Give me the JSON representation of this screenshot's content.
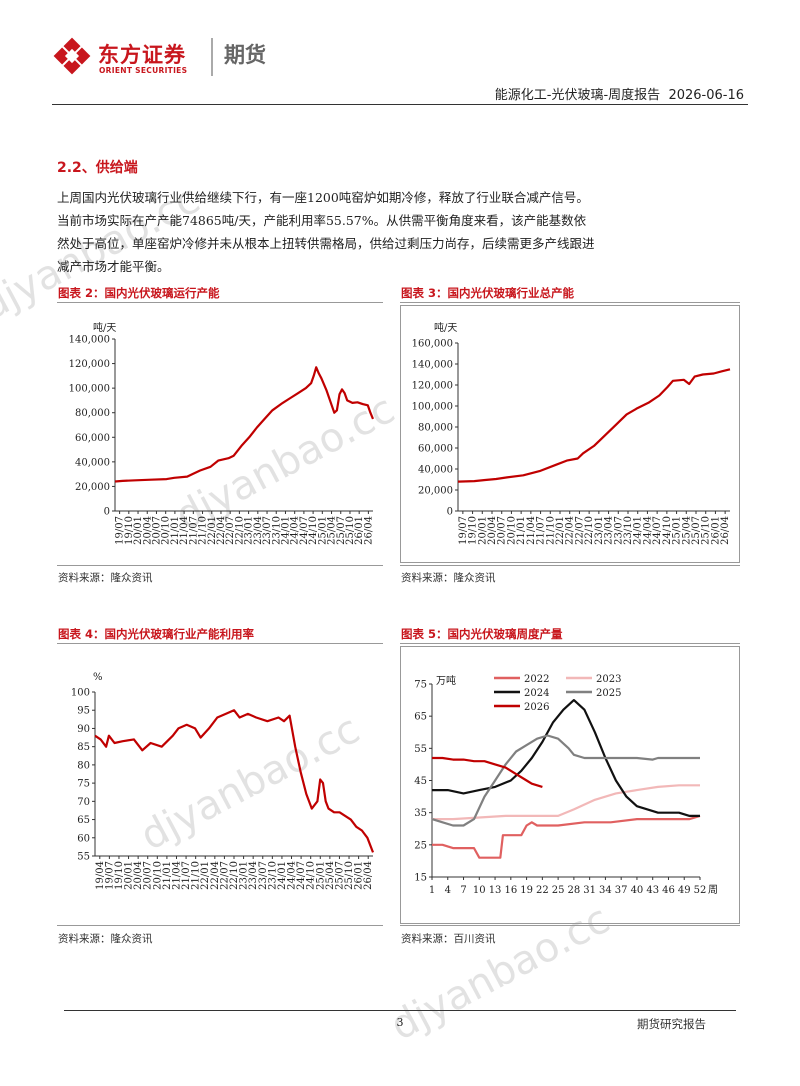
{
  "header": {
    "logo_cn": "东方证券",
    "logo_en": "ORIENT SECURITIES",
    "logo_futures": "期货",
    "title": "能源化工-光伏玻璃-周度报告",
    "date": "2026-06-16"
  },
  "section": {
    "title": "2.2、供给端",
    "paragraph": "上周国内光伏玻璃行业供给继续下行，有一座1200吨窑炉如期冷修，释放了行业联合减产信号。当前市场实际在产产能74865吨/天，产能利用率55.57%。从供需平衡角度来看，该产能基数依然处于高位，单座窑炉冷修并未从根本上扭转供需格局，供给过剩压力尚存，后续需更多产线跟进减产市场才能平衡。"
  },
  "watermark": "djyanbao.cc",
  "figures": [
    {
      "title": "图表 2：国内光伏玻璃运行产能",
      "source": "资料来源：隆众资讯"
    },
    {
      "title": "图表 3：国内光伏玻璃行业总产能",
      "source": "资料来源：隆众资讯"
    },
    {
      "title": "图表 4：国内光伏玻璃行业产能利用率",
      "source": "资料来源：隆众资讯"
    },
    {
      "title": "图表 5：国内光伏玻璃周度产量",
      "source": "资料来源：百川资讯"
    }
  ],
  "footer": {
    "page": "3",
    "label": "期货研究报告"
  },
  "chart_data": [
    {
      "type": "line",
      "unit": "吨/天",
      "ylim": [
        0,
        140000
      ],
      "yticks": [
        0,
        20000,
        40000,
        60000,
        80000,
        100000,
        120000,
        140000
      ],
      "ytick_labels": [
        "0",
        "20,000",
        "40,000",
        "60,000",
        "80,000",
        "100,000",
        "120,000",
        "140,000"
      ],
      "xticks": [
        "19/07",
        "19/10",
        "20/01",
        "20/04",
        "20/07",
        "20/10",
        "21/01",
        "21/04",
        "21/07",
        "21/10",
        "22/01",
        "22/04",
        "22/07",
        "22/10",
        "23/01",
        "23/04",
        "23/07",
        "23/10",
        "24/01",
        "24/04",
        "24/07",
        "24/10",
        "25/01",
        "25/04",
        "25/07",
        "25/10",
        "26/01",
        "26/04"
      ],
      "color": "#c00000",
      "series": [
        {
          "values": [
            [
              0,
              24000
            ],
            [
              0.03,
              24500
            ],
            [
              0.08,
              25000
            ],
            [
              0.14,
              25500
            ],
            [
              0.2,
              26000
            ],
            [
              0.23,
              27000
            ],
            [
              0.28,
              28000
            ],
            [
              0.3,
              30000
            ],
            [
              0.33,
              33000
            ],
            [
              0.37,
              36000
            ],
            [
              0.4,
              41000
            ],
            [
              0.44,
              43000
            ],
            [
              0.46,
              45000
            ],
            [
              0.49,
              53000
            ],
            [
              0.52,
              60000
            ],
            [
              0.55,
              68000
            ],
            [
              0.58,
              75000
            ],
            [
              0.61,
              82000
            ],
            [
              0.65,
              88000
            ],
            [
              0.68,
              92000
            ],
            [
              0.71,
              96000
            ],
            [
              0.74,
              100000
            ],
            [
              0.76,
              104000
            ],
            [
              0.77,
              110000
            ],
            [
              0.78,
              117000
            ],
            [
              0.79,
              112000
            ],
            [
              0.8,
              108000
            ],
            [
              0.82,
              98000
            ],
            [
              0.84,
              86000
            ],
            [
              0.85,
              80000
            ],
            [
              0.86,
              82000
            ],
            [
              0.87,
              95000
            ],
            [
              0.88,
              99000
            ],
            [
              0.89,
              96000
            ],
            [
              0.9,
              90000
            ],
            [
              0.92,
              88000
            ],
            [
              0.94,
              88500
            ],
            [
              0.96,
              87000
            ],
            [
              0.98,
              86000
            ],
            [
              0.99,
              80000
            ],
            [
              1.0,
              75000
            ]
          ]
        }
      ]
    },
    {
      "type": "line",
      "unit": "吨/天",
      "ylim": [
        0,
        160000
      ],
      "yticks": [
        0,
        20000,
        40000,
        60000,
        80000,
        100000,
        120000,
        140000,
        160000
      ],
      "ytick_labels": [
        "0",
        "20,000",
        "40,000",
        "60,000",
        "80,000",
        "100,000",
        "120,000",
        "140,000",
        "160,000"
      ],
      "xticks": [
        "19/07",
        "19/10",
        "20/01",
        "20/04",
        "20/07",
        "20/10",
        "21/01",
        "21/04",
        "21/07",
        "21/10",
        "22/01",
        "22/04",
        "22/07",
        "22/10",
        "23/01",
        "23/04",
        "23/07",
        "23/10",
        "24/01",
        "24/04",
        "24/07",
        "24/10",
        "25/01",
        "25/04",
        "25/07",
        "25/10",
        "26/01",
        "26/04"
      ],
      "color": "#c00000",
      "series": [
        {
          "values": [
            [
              0,
              28000
            ],
            [
              0.06,
              28500
            ],
            [
              0.1,
              29500
            ],
            [
              0.14,
              30500
            ],
            [
              0.18,
              32000
            ],
            [
              0.24,
              34000
            ],
            [
              0.3,
              38000
            ],
            [
              0.36,
              44000
            ],
            [
              0.4,
              48000
            ],
            [
              0.44,
              50000
            ],
            [
              0.46,
              55000
            ],
            [
              0.5,
              62000
            ],
            [
              0.54,
              72000
            ],
            [
              0.58,
              82000
            ],
            [
              0.62,
              92000
            ],
            [
              0.66,
              98000
            ],
            [
              0.7,
              103000
            ],
            [
              0.74,
              110000
            ],
            [
              0.77,
              118000
            ],
            [
              0.79,
              124000
            ],
            [
              0.83,
              125000
            ],
            [
              0.85,
              121000
            ],
            [
              0.87,
              128000
            ],
            [
              0.9,
              130000
            ],
            [
              0.94,
              131000
            ],
            [
              0.97,
              133000
            ],
            [
              1.0,
              135000
            ]
          ]
        }
      ]
    },
    {
      "type": "line",
      "unit": "%",
      "ylim": [
        55,
        100
      ],
      "yticks": [
        55,
        60,
        65,
        70,
        75,
        80,
        85,
        90,
        95,
        100
      ],
      "ytick_labels": [
        "55",
        "60",
        "65",
        "70",
        "75",
        "80",
        "85",
        "90",
        "95",
        "100"
      ],
      "xticks": [
        "19/04",
        "19/07",
        "19/10",
        "20/01",
        "20/04",
        "20/07",
        "20/10",
        "21/01",
        "21/04",
        "21/07",
        "21/10",
        "22/01",
        "22/04",
        "22/07",
        "22/10",
        "23/01",
        "23/04",
        "23/07",
        "23/10",
        "24/01",
        "24/04",
        "24/07",
        "24/10",
        "25/01",
        "25/04",
        "25/07",
        "25/10",
        "26/01",
        "26/04"
      ],
      "color": "#c00000",
      "series": [
        {
          "values": [
            [
              0,
              88
            ],
            [
              0.02,
              87
            ],
            [
              0.04,
              85
            ],
            [
              0.05,
              88
            ],
            [
              0.07,
              86
            ],
            [
              0.1,
              86.5
            ],
            [
              0.14,
              87
            ],
            [
              0.17,
              84
            ],
            [
              0.2,
              86
            ],
            [
              0.24,
              85
            ],
            [
              0.28,
              88
            ],
            [
              0.3,
              90
            ],
            [
              0.33,
              91
            ],
            [
              0.36,
              90
            ],
            [
              0.38,
              87.5
            ],
            [
              0.41,
              90
            ],
            [
              0.44,
              93
            ],
            [
              0.47,
              94
            ],
            [
              0.5,
              95
            ],
            [
              0.52,
              93
            ],
            [
              0.55,
              94
            ],
            [
              0.58,
              93
            ],
            [
              0.62,
              92
            ],
            [
              0.66,
              93
            ],
            [
              0.68,
              92
            ],
            [
              0.7,
              93.5
            ],
            [
              0.72,
              85
            ],
            [
              0.74,
              78
            ],
            [
              0.76,
              72
            ],
            [
              0.78,
              68
            ],
            [
              0.8,
              70
            ],
            [
              0.81,
              76
            ],
            [
              0.82,
              75
            ],
            [
              0.83,
              70
            ],
            [
              0.84,
              68
            ],
            [
              0.86,
              67
            ],
            [
              0.88,
              67
            ],
            [
              0.9,
              66
            ],
            [
              0.92,
              65
            ],
            [
              0.94,
              63
            ],
            [
              0.96,
              62
            ],
            [
              0.98,
              60
            ],
            [
              1.0,
              56
            ]
          ]
        }
      ]
    },
    {
      "type": "line",
      "unit": "万吨",
      "ylim": [
        15,
        75
      ],
      "yticks": [
        15,
        25,
        35,
        45,
        55,
        65,
        75
      ],
      "ytick_labels": [
        "15",
        "25",
        "35",
        "45",
        "55",
        "65",
        "75"
      ],
      "xticks": [
        "1",
        "4",
        "7",
        "10",
        "13",
        "16",
        "19",
        "22",
        "25",
        "28",
        "31",
        "34",
        "37",
        "40",
        "43",
        "46",
        "49",
        "52"
      ],
      "xlim": [
        1,
        52
      ],
      "x_unit": "周",
      "series": [
        {
          "name": "2022",
          "color": "#e06060",
          "values": [
            [
              1,
              25
            ],
            [
              3,
              25
            ],
            [
              5,
              24
            ],
            [
              7,
              24
            ],
            [
              9,
              24
            ],
            [
              10,
              21
            ],
            [
              12,
              21
            ],
            [
              14,
              21
            ],
            [
              14.5,
              28
            ],
            [
              16,
              28
            ],
            [
              18,
              28
            ],
            [
              19,
              31
            ],
            [
              20,
              32
            ],
            [
              21,
              31
            ],
            [
              25,
              31
            ],
            [
              30,
              32
            ],
            [
              35,
              32
            ],
            [
              40,
              33
            ],
            [
              45,
              33
            ],
            [
              50,
              33
            ],
            [
              52,
              34
            ]
          ]
        },
        {
          "name": "2023",
          "color": "#f2b8b8",
          "values": [
            [
              1,
              33
            ],
            [
              5,
              33
            ],
            [
              10,
              33.5
            ],
            [
              15,
              34
            ],
            [
              20,
              34
            ],
            [
              25,
              34
            ],
            [
              28,
              36
            ],
            [
              32,
              39
            ],
            [
              36,
              41
            ],
            [
              40,
              42
            ],
            [
              44,
              43
            ],
            [
              48,
              43.5
            ],
            [
              52,
              43.5
            ]
          ]
        },
        {
          "name": "2024",
          "color": "#111111",
          "values": [
            [
              1,
              42
            ],
            [
              4,
              42
            ],
            [
              7,
              41
            ],
            [
              10,
              42
            ],
            [
              13,
              43
            ],
            [
              16,
              45
            ],
            [
              18,
              48
            ],
            [
              20,
              52
            ],
            [
              22,
              57
            ],
            [
              24,
              63
            ],
            [
              26,
              67
            ],
            [
              28,
              70
            ],
            [
              30,
              67
            ],
            [
              32,
              60
            ],
            [
              34,
              52
            ],
            [
              36,
              45
            ],
            [
              38,
              40
            ],
            [
              40,
              37
            ],
            [
              42,
              36
            ],
            [
              44,
              35
            ],
            [
              46,
              35
            ],
            [
              48,
              35
            ],
            [
              50,
              34
            ],
            [
              52,
              34
            ]
          ]
        },
        {
          "name": "2025",
          "color": "#808080",
          "values": [
            [
              1,
              33
            ],
            [
              3,
              32
            ],
            [
              5,
              31
            ],
            [
              7,
              31
            ],
            [
              9,
              33
            ],
            [
              11,
              40
            ],
            [
              13,
              45
            ],
            [
              15,
              50
            ],
            [
              17,
              54
            ],
            [
              19,
              56
            ],
            [
              21,
              58
            ],
            [
              23,
              59
            ],
            [
              25,
              58
            ],
            [
              27,
              55
            ],
            [
              28,
              53
            ],
            [
              30,
              52
            ],
            [
              33,
              52
            ],
            [
              36,
              52
            ],
            [
              40,
              52
            ],
            [
              43,
              51.5
            ],
            [
              44,
              52
            ],
            [
              46,
              52
            ],
            [
              48,
              52
            ],
            [
              50,
              52
            ],
            [
              52,
              52
            ]
          ]
        },
        {
          "name": "2026",
          "color": "#c00000",
          "values": [
            [
              1,
              52
            ],
            [
              3,
              52
            ],
            [
              5,
              51.5
            ],
            [
              7,
              51.5
            ],
            [
              9,
              51
            ],
            [
              11,
              51
            ],
            [
              13,
              50
            ],
            [
              15,
              49
            ],
            [
              17,
              47
            ],
            [
              19,
              45
            ],
            [
              20,
              44
            ],
            [
              22,
              43
            ]
          ]
        }
      ]
    }
  ]
}
